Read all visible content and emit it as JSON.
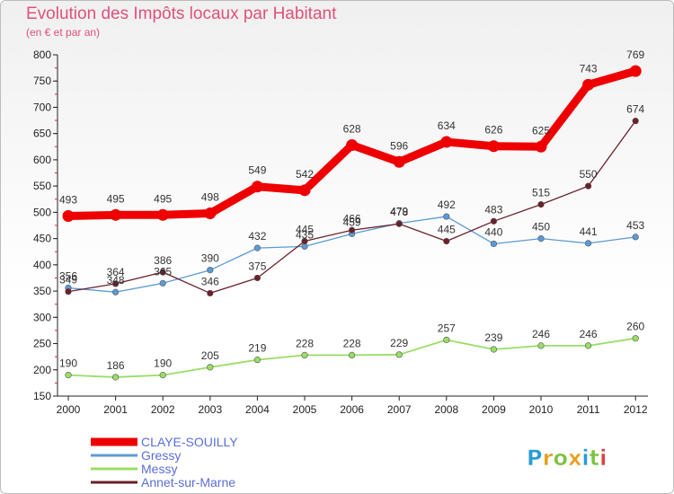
{
  "chart_data": {
    "type": "line",
    "title": "Evolution des Impôts locaux par Habitant",
    "subtitle": "(en € et par an)",
    "xlabel": "",
    "ylabel": "",
    "categories": [
      "2000",
      "2001",
      "2002",
      "2003",
      "2004",
      "2005",
      "2006",
      "2007",
      "2008",
      "2009",
      "2010",
      "2011",
      "2012"
    ],
    "ylim": [
      150,
      800
    ],
    "yticks": [
      "150",
      "200",
      "250",
      "300",
      "350",
      "400",
      "450",
      "500",
      "550",
      "600",
      "650",
      "700",
      "750",
      "800"
    ],
    "grid": false,
    "legend_position": "bottom-left",
    "series": [
      {
        "name": "CLAYE-SOUILLY",
        "color": "#ee0000",
        "values": [
          493,
          495,
          495,
          498,
          549,
          542,
          628,
          596,
          634,
          626,
          625,
          743,
          769
        ]
      },
      {
        "name": "Gressy",
        "color": "#5b9bd5",
        "values": [
          356,
          348,
          365,
          390,
          432,
          435,
          459,
          479,
          492,
          440,
          450,
          441,
          453
        ]
      },
      {
        "name": "Messy",
        "color": "#99dd66",
        "values": [
          190,
          186,
          190,
          205,
          219,
          228,
          228,
          229,
          257,
          239,
          246,
          246,
          260
        ]
      },
      {
        "name": "Annet-sur-Marne",
        "color": "#6b1f2a",
        "values": [
          349,
          364,
          386,
          346,
          375,
          445,
          466,
          478,
          445,
          483,
          515,
          550,
          674
        ]
      }
    ]
  },
  "logo": {
    "text": "Proxiti",
    "letters": [
      "P",
      "r",
      "o",
      "x",
      "i",
      "t",
      "i"
    ],
    "colors": [
      "#2a9bd6",
      "#e8a020",
      "#7cc242",
      "#e8a020",
      "#2a9bd6",
      "#7cc242",
      "#e04040"
    ]
  }
}
